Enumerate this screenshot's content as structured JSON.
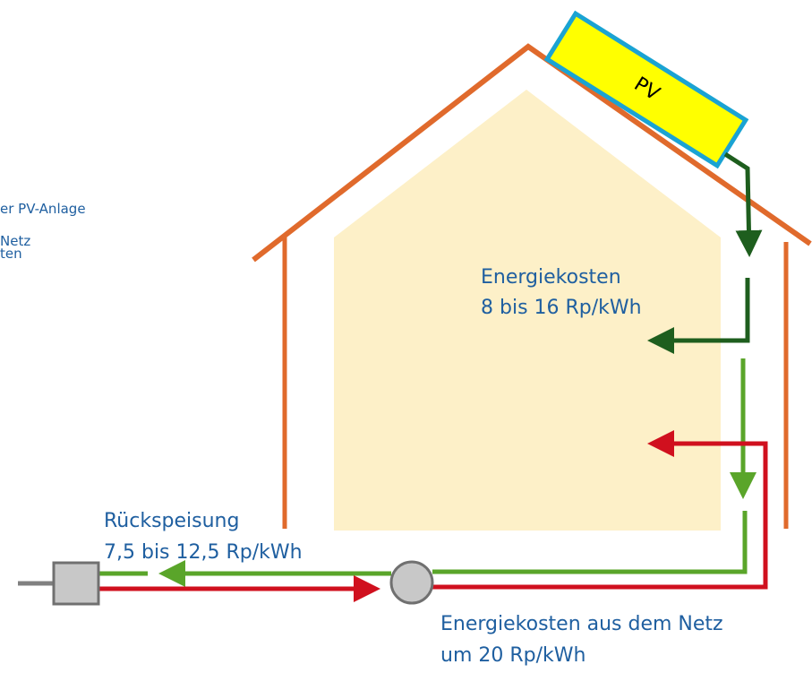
{
  "labels": {
    "left_1": "er PV-Anlage",
    "left_2": "Netz",
    "left_3": "ten"
  },
  "panel": {
    "label": "PV"
  },
  "own_use": {
    "title": "Energiekosten",
    "price": "8 bis 16 Rp/kWh"
  },
  "feed_in": {
    "title": "Rückspeisung",
    "price": "7,5 bis 12,5 Rp/kWh"
  },
  "grid": {
    "title": "Energiekosten aus dem Netz",
    "price": "um 20 Rp/kWh"
  }
}
